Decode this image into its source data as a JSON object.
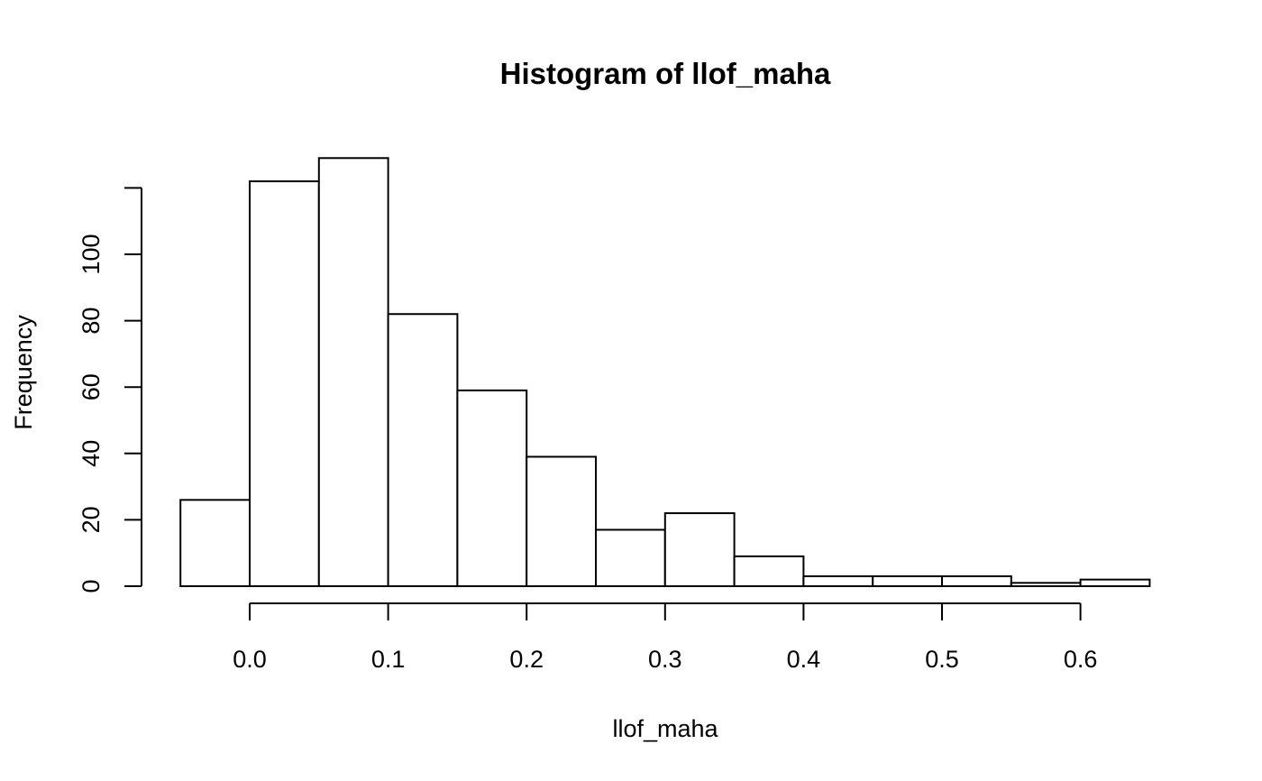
{
  "chart_data": {
    "type": "bar",
    "title": "Histogram of llof_maha",
    "xlabel": "llof_maha",
    "ylabel": "Frequency",
    "bin_edges": [
      -0.05,
      0.0,
      0.05,
      0.1,
      0.15,
      0.2,
      0.25,
      0.3,
      0.35,
      0.4,
      0.45,
      0.5,
      0.55,
      0.6,
      0.65
    ],
    "values": [
      26,
      122,
      129,
      82,
      59,
      39,
      17,
      22,
      9,
      3,
      3,
      3,
      1,
      2
    ],
    "x_ticks": [
      0.0,
      0.1,
      0.2,
      0.3,
      0.4,
      0.5,
      0.6
    ],
    "x_tick_labels": [
      "0.0",
      "0.1",
      "0.2",
      "0.3",
      "0.4",
      "0.5",
      "0.6"
    ],
    "y_ticks": [
      0,
      20,
      40,
      60,
      80,
      100
    ],
    "y_tick_labels": [
      "0",
      "20",
      "40",
      "60",
      "80",
      "100"
    ],
    "xlim": [
      -0.05,
      0.65
    ],
    "ylim": [
      0,
      120
    ],
    "grid": false,
    "bar_fill": "#ffffff",
    "bar_stroke": "#000000"
  }
}
